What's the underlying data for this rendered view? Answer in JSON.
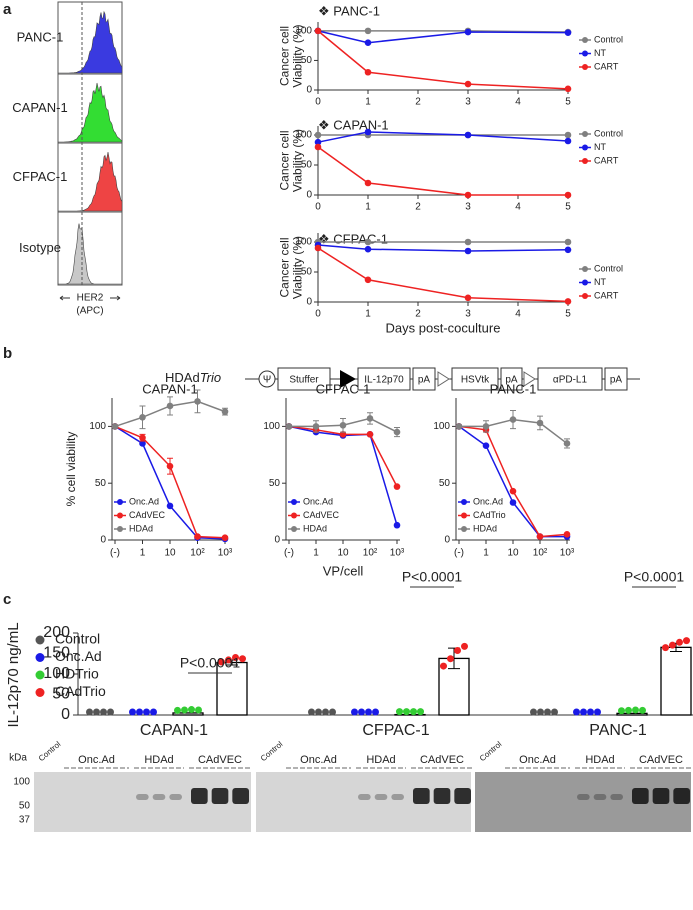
{
  "panel_labels": [
    "a",
    "b",
    "c"
  ],
  "flow": {
    "samples": [
      {
        "name": "PANC-1",
        "color": "#3a3ae0"
      },
      {
        "name": "CAPAN-1",
        "color": "#33dd33"
      },
      {
        "name": "CFPAC-1",
        "color": "#ee4444"
      },
      {
        "name": "Isotype",
        "color": "#c8c8c8"
      }
    ],
    "xlabel": "HER2",
    "xunit": "(APC)"
  },
  "construct": {
    "name": "HDAd",
    "name_italic": "Trio",
    "elements": [
      "Ψ",
      "Stuffer",
      "IL-12p70",
      "pA",
      "HSVtk",
      "pA",
      "αPD-L1",
      "pA"
    ]
  },
  "chart_data": [
    {
      "type": "line",
      "title": "❖ PANC-1",
      "ylabel": [
        "Cancer cell",
        "Viability (%)"
      ],
      "x": [
        0,
        1,
        3,
        5
      ],
      "xlim": [
        0,
        5
      ],
      "xticks": [
        0,
        1,
        2,
        3,
        4,
        5
      ],
      "ylim": [
        0,
        115
      ],
      "yticks": [
        0,
        50,
        100
      ],
      "legend": "right",
      "series": [
        {
          "name": "Control",
          "color": "#808080",
          "values": [
            100,
            100,
            100,
            98
          ]
        },
        {
          "name": "NT",
          "color": "#1a1ae6",
          "values": [
            100,
            80,
            98,
            97
          ]
        },
        {
          "name": "CART",
          "color": "#ee2222",
          "values": [
            100,
            30,
            10,
            2
          ]
        }
      ]
    },
    {
      "type": "line",
      "title": "❖ CAPAN-1",
      "ylabel": [
        "Cancer cell",
        "Viability (%)"
      ],
      "x": [
        0,
        1,
        3,
        5
      ],
      "xlim": [
        0,
        5
      ],
      "xticks": [
        0,
        1,
        2,
        3,
        4,
        5
      ],
      "ylim": [
        0,
        115
      ],
      "yticks": [
        0,
        50,
        100
      ],
      "legend": "right",
      "series": [
        {
          "name": "Control",
          "color": "#808080",
          "values": [
            100,
            100,
            100,
            100
          ]
        },
        {
          "name": "NT",
          "color": "#1a1ae6",
          "values": [
            88,
            105,
            100,
            90
          ]
        },
        {
          "name": "CART",
          "color": "#ee2222",
          "values": [
            80,
            20,
            0,
            0
          ]
        }
      ]
    },
    {
      "type": "line",
      "title": "❖ CFPAC-1",
      "ylabel": [
        "Cancer cell",
        "Viability (%)"
      ],
      "xlabel": "Days post-coculture",
      "x": [
        0,
        1,
        3,
        5
      ],
      "xlim": [
        0,
        5
      ],
      "xticks": [
        0,
        1,
        2,
        3,
        4,
        5
      ],
      "ylim": [
        0,
        115
      ],
      "yticks": [
        0,
        50,
        100
      ],
      "legend": "right",
      "series": [
        {
          "name": "Control",
          "color": "#808080",
          "values": [
            100,
            100,
            100,
            100
          ]
        },
        {
          "name": "NT",
          "color": "#1a1ae6",
          "values": [
            95,
            88,
            85,
            87
          ]
        },
        {
          "name": "CART",
          "color": "#ee2222",
          "values": [
            90,
            37,
            7,
            1
          ]
        }
      ]
    },
    {
      "type": "line",
      "title": "CAPAN-1",
      "ylabel": [
        "% cell viability"
      ],
      "categories": [
        "(-)",
        "1",
        "10",
        "10²",
        "10³"
      ],
      "ylim": [
        0,
        125
      ],
      "yticks": [
        0,
        50,
        100
      ],
      "legend": "lower left",
      "series": [
        {
          "name": "Onc.Ad",
          "color": "#1a1ae6",
          "values": [
            100,
            85,
            30,
            2,
            1
          ]
        },
        {
          "name": "CAdVEC",
          "color": "#ee2222",
          "values": [
            100,
            90,
            65,
            3,
            2
          ],
          "errors": [
            0,
            3,
            7,
            1,
            1
          ]
        },
        {
          "name": "HDAd",
          "color": "#808080",
          "values": [
            100,
            108,
            118,
            122,
            113
          ],
          "errors": [
            0,
            10,
            8,
            10,
            3
          ]
        }
      ]
    },
    {
      "type": "line",
      "title": "CFPAC-1",
      "xlabel": "VP/cell",
      "categories": [
        "(-)",
        "1",
        "10",
        "10²",
        "10³"
      ],
      "ylim": [
        0,
        125
      ],
      "yticks": [
        0,
        50,
        100
      ],
      "legend": "lower left",
      "series": [
        {
          "name": "Onc.Ad",
          "color": "#1a1ae6",
          "values": [
            100,
            95,
            92,
            93,
            13
          ]
        },
        {
          "name": "CAdVEC",
          "color": "#ee2222",
          "values": [
            100,
            97,
            93,
            93,
            47
          ]
        },
        {
          "name": "HDAd",
          "color": "#808080",
          "values": [
            100,
            100,
            101,
            107,
            95
          ],
          "errors": [
            0,
            5,
            6,
            5,
            4
          ]
        }
      ]
    },
    {
      "type": "line",
      "title": "PANC-1",
      "categories": [
        "(-)",
        "1",
        "10",
        "10²",
        "10³"
      ],
      "ylim": [
        0,
        125
      ],
      "yticks": [
        0,
        50,
        100
      ],
      "legend": "lower left",
      "series": [
        {
          "name": "Onc.Ad",
          "color": "#1a1ae6",
          "values": [
            100,
            83,
            33,
            3,
            3
          ]
        },
        {
          "name": "CAdTrio",
          "color": "#ee2222",
          "values": [
            100,
            97,
            43,
            3,
            5
          ]
        },
        {
          "name": "HDAd",
          "color": "#808080",
          "values": [
            100,
            100,
            106,
            103,
            85
          ],
          "errors": [
            0,
            5,
            8,
            6,
            4
          ]
        }
      ]
    },
    {
      "type": "bar",
      "ylabel": "IL-12p70 ng/mL",
      "categories": [
        "CAPAN-1",
        "CFPAC-1",
        "PANC-1"
      ],
      "ylim": [
        0,
        200
      ],
      "yticks": [
        0,
        50,
        100,
        150,
        200
      ],
      "legend": "upper left",
      "annotations": [
        "P<0.0001",
        "P<0.0001",
        "P<0.0001"
      ],
      "series": [
        {
          "name": "Control",
          "color": "#555555",
          "values": [
            0,
            0,
            0
          ],
          "points": [
            [
              0,
              0,
              0,
              0
            ],
            [
              0,
              0,
              0,
              0
            ],
            [
              0,
              0,
              0,
              0
            ]
          ]
        },
        {
          "name": "Onc.Ad",
          "color": "#1a1ae6",
          "values": [
            0,
            0,
            0
          ],
          "points": [
            [
              0,
              0,
              0,
              0
            ],
            [
              0,
              0,
              0,
              0
            ],
            [
              0,
              0,
              0,
              0
            ]
          ]
        },
        {
          "name": "HDTrio",
          "color": "#33cc33",
          "values": [
            5,
            1,
            4
          ],
          "points": [
            [
              4,
              5,
              6,
              5
            ],
            [
              1,
              1,
              1,
              1
            ],
            [
              3,
              4,
              5,
              4
            ]
          ]
        },
        {
          "name": "CAdTrio",
          "color": "#ee2222",
          "values": [
            128,
            138,
            165
          ],
          "errors": [
            6,
            25,
            10
          ],
          "points": [
            [
              122,
              127,
              133,
              130
            ],
            [
              112,
              130,
              150,
              160
            ],
            [
              157,
              163,
              170,
              174
            ]
          ]
        }
      ]
    }
  ],
  "blots": {
    "unit": "kDa",
    "markers": [
      100,
      50,
      37
    ],
    "lanes": [
      "Control",
      "Onc.Ad",
      "HDAd",
      "CAdVEC"
    ]
  }
}
